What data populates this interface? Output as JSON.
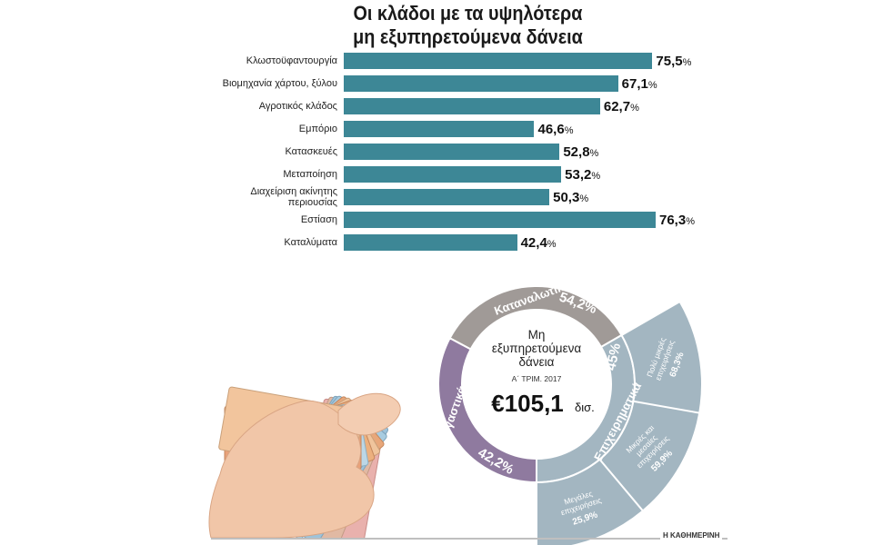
{
  "title_line1": "Οι κλάδοι με τα υψηλότερα",
  "title_line2": "μη εξυπηρετούμενα δάνεια",
  "chart_data": [
    {
      "type": "bar",
      "orientation": "horizontal",
      "title": "Οι κλάδοι με τα υψηλότερα μη εξυπηρετούμενα δάνεια",
      "categories": [
        "Κλωστοϋφαντουργία",
        "Βιομηχανία χάρτου, ξύλου",
        "Αγροτικός κλάδος",
        "Εμπόριο",
        "Κατασκευές",
        "Μεταποίηση",
        "Διαχείριση ακίνητης περιουσίας",
        "Εστίαση",
        "Καταλύματα"
      ],
      "category_lines": [
        [
          "Κλωστοϋφαντουργία"
        ],
        [
          "Βιομηχανία χάρτου, ξύλου"
        ],
        [
          "Αγροτικός κλάδος"
        ],
        [
          "Εμπόριο"
        ],
        [
          "Κατασκευές"
        ],
        [
          "Μεταποίηση"
        ],
        [
          "Διαχείριση ακίνητης",
          "περιουσίας"
        ],
        [
          "Εστίαση"
        ],
        [
          "Καταλύματα"
        ]
      ],
      "values": [
        75.5,
        67.1,
        62.7,
        46.6,
        52.8,
        53.2,
        50.3,
        76.3,
        42.4
      ],
      "value_labels": [
        "75,5",
        "67,1",
        "62,7",
        "46,6",
        "52,8",
        "53,2",
        "50,3",
        "76,3",
        "42,4"
      ],
      "unit": "%",
      "bar_color": "#3d8796",
      "xlim": [
        0,
        76.3
      ]
    },
    {
      "type": "pie",
      "style": "donut",
      "center_title": "Μη εξυπηρετούμενα δάνεια",
      "center_subtitle": "Α΄ ΤΡΙΜ. 2017",
      "center_value": "€105,1",
      "center_unit": "δισ.",
      "slices": [
        {
          "label": "Καταναλωτικά",
          "value_label": "54,2%",
          "color": "#a09a97"
        },
        {
          "label": "Επιχειρηματικά",
          "value_label": "45%",
          "color": "#a3b6c1"
        },
        {
          "label": "Στεγαστικά",
          "value_label": "42,2%",
          "color": "#8f7a9f"
        }
      ],
      "sub_slices": [
        {
          "label_lines": [
            "Πολύ μικρές",
            "επιχειρήσεις"
          ],
          "value_label": "68,3%"
        },
        {
          "label_lines": [
            "Μικρές και",
            "μεσαίες",
            "επιχειρήσεις"
          ],
          "value_label": "59,9%"
        },
        {
          "label_lines": [
            "Μεγάλες",
            "επιχειρήσεις"
          ],
          "value_label": "25,9%"
        }
      ]
    }
  ],
  "credit": "Η ΚΑΘΗΜΕΡΙΝΗ",
  "colors": {
    "bar": "#3d8796",
    "consumer": "#a09a97",
    "business": "#a3b6c1",
    "housing": "#8f7a9f",
    "ring_inner": "#ffffff"
  },
  "illustration": "hand-holding-euro-banknotes"
}
